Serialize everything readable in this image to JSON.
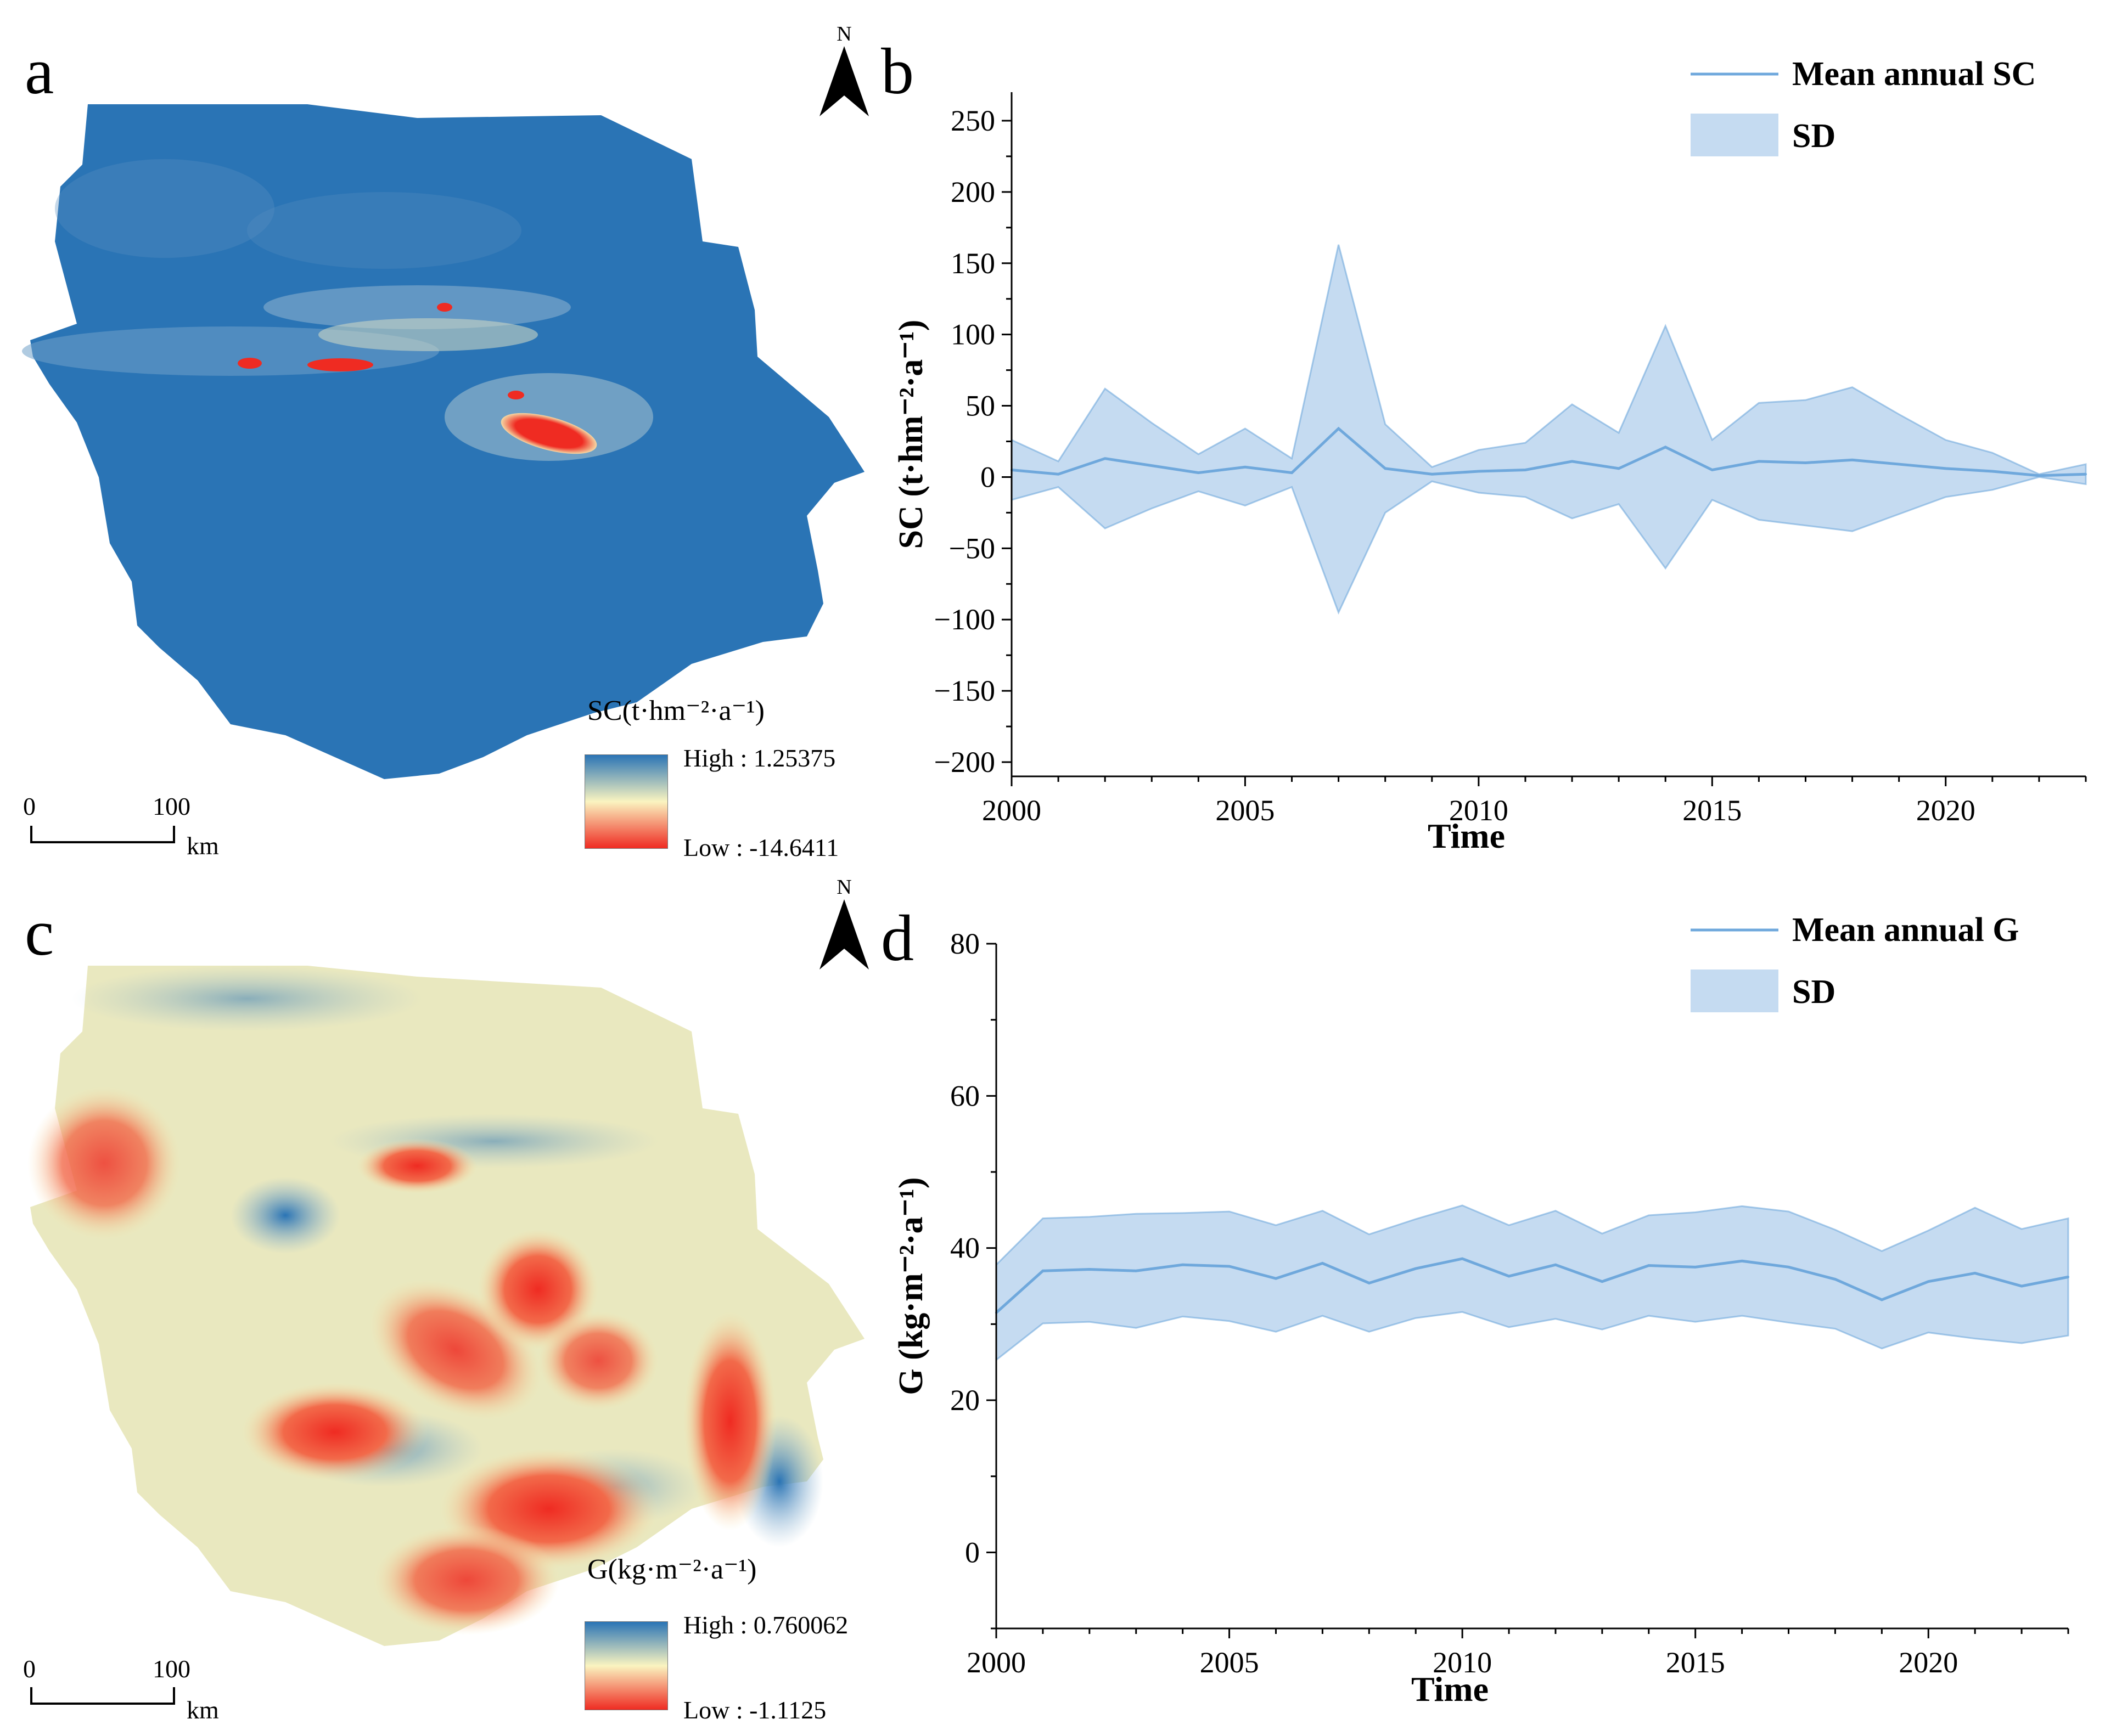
{
  "panels": {
    "a": {
      "letter": "a",
      "north_label": "N",
      "legend_title": "SC(t·hm⁻²·a⁻¹)",
      "legend_high": "High : 1.25375",
      "legend_low": "Low : -14.6411",
      "scale": {
        "start": "0",
        "end": "100",
        "unit": "km"
      },
      "colors": {
        "high": "#2a74b5",
        "mid": "#faf4c0",
        "low": "#ef2b22"
      }
    },
    "c": {
      "letter": "c",
      "north_label": "N",
      "legend_title": "G(kg·m⁻²·a⁻¹)",
      "legend_high": "High : 0.760062",
      "legend_low": "Low : -1.1125",
      "scale": {
        "start": "0",
        "end": "100",
        "unit": "km"
      },
      "colors": {
        "high": "#2a74b5",
        "mid": "#faf4c0",
        "low": "#ef2b22"
      }
    },
    "b": {
      "letter": "b"
    },
    "d": {
      "letter": "d"
    }
  },
  "chart_data": [
    {
      "id": "b",
      "type": "line",
      "title": "",
      "xlabel": "Time",
      "ylabel": "SC (t·hm⁻²·a⁻¹)",
      "xlim": [
        2000,
        2023
      ],
      "ylim": [
        -210,
        270
      ],
      "xticks": [
        2000,
        2005,
        2010,
        2015,
        2020
      ],
      "yticks": [
        -200,
        -150,
        -100,
        -50,
        0,
        50,
        100,
        150,
        200,
        250
      ],
      "xtick_labels": [
        "2000",
        "2005",
        "2010",
        "2015",
        "2020"
      ],
      "ytick_labels": [
        "−200",
        "−150",
        "−100",
        "−50",
        "0",
        "50",
        "100",
        "150",
        "200",
        "250"
      ],
      "legend": [
        "Mean annual SC",
        "SD"
      ],
      "legend_position": "top-right",
      "line_color": "#6fa8dc",
      "band_color": "#c5dbf1",
      "x": [
        2000,
        2001,
        2002,
        2003,
        2004,
        2005,
        2006,
        2007,
        2008,
        2009,
        2010,
        2011,
        2012,
        2013,
        2014,
        2015,
        2016,
        2017,
        2018,
        2019,
        2020,
        2021,
        2022,
        2023
      ],
      "series": [
        {
          "name": "Mean annual SC",
          "values": [
            5,
            2,
            13,
            8,
            3,
            7,
            3,
            34,
            6,
            2,
            4,
            5,
            11,
            6,
            21,
            5,
            11,
            10,
            12,
            9,
            6,
            4,
            1,
            2
          ]
        },
        {
          "name": "SD upper",
          "values": [
            26,
            11,
            62,
            38,
            16,
            34,
            13,
            163,
            37,
            7,
            19,
            24,
            51,
            31,
            106,
            26,
            52,
            54,
            63,
            44,
            26,
            17,
            2,
            9
          ]
        },
        {
          "name": "SD lower",
          "values": [
            -16,
            -7,
            -36,
            -22,
            -10,
            -20,
            -7,
            -95,
            -25,
            -3,
            -11,
            -14,
            -29,
            -19,
            -64,
            -16,
            -30,
            -34,
            -38,
            -26,
            -14,
            -9,
            0,
            -5
          ]
        }
      ]
    },
    {
      "id": "d",
      "type": "line",
      "title": "",
      "xlabel": "Time",
      "ylabel": "G (kg·m⁻²·a⁻¹)",
      "xlim": [
        2000,
        2023
      ],
      "ylim": [
        -10,
        80
      ],
      "xticks": [
        2000,
        2005,
        2010,
        2015,
        2020
      ],
      "yticks": [
        0,
        20,
        40,
        60,
        80
      ],
      "xtick_labels": [
        "2000",
        "2005",
        "2010",
        "2015",
        "2020"
      ],
      "ytick_labels": [
        "0",
        "20",
        "40",
        "60",
        "80"
      ],
      "legend": [
        "Mean annual G",
        "SD"
      ],
      "legend_position": "top-right",
      "line_color": "#6fa8dc",
      "band_color": "#c5dbf1",
      "x": [
        2000,
        2001,
        2002,
        2003,
        2004,
        2005,
        2006,
        2007,
        2008,
        2009,
        2010,
        2011,
        2012,
        2013,
        2014,
        2015,
        2016,
        2017,
        2018,
        2019,
        2020,
        2021,
        2022,
        2023
      ],
      "series": [
        {
          "name": "Mean annual G",
          "values": [
            31.5,
            37.0,
            37.2,
            37.0,
            37.8,
            37.6,
            36.0,
            38.0,
            35.4,
            37.3,
            38.6,
            36.3,
            37.8,
            35.6,
            37.7,
            37.5,
            38.3,
            37.5,
            35.9,
            33.2,
            35.6,
            36.7,
            35.0,
            36.2
          ]
        },
        {
          "name": "SD upper",
          "values": [
            37.8,
            43.9,
            44.1,
            44.5,
            44.6,
            44.8,
            43.0,
            44.9,
            41.8,
            43.8,
            45.6,
            43.0,
            44.9,
            41.9,
            44.3,
            44.7,
            45.5,
            44.8,
            42.4,
            39.6,
            42.3,
            45.3,
            42.5,
            43.9
          ]
        },
        {
          "name": "SD lower",
          "values": [
            25.3,
            30.1,
            30.3,
            29.5,
            31.0,
            30.4,
            29.0,
            31.1,
            29.0,
            30.8,
            31.6,
            29.6,
            30.7,
            29.3,
            31.1,
            30.3,
            31.1,
            30.2,
            29.4,
            26.8,
            28.9,
            28.1,
            27.5,
            28.5
          ]
        }
      ]
    }
  ]
}
